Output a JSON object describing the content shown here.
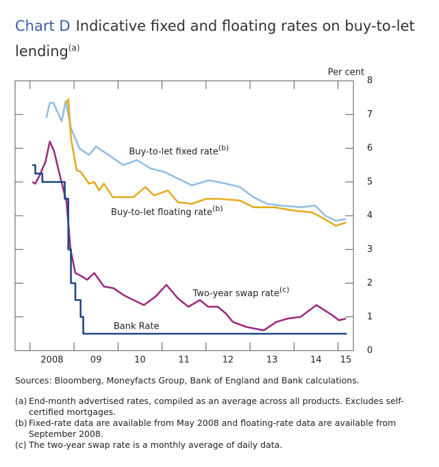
{
  "chart_data": {
    "type": "line",
    "label": "Chart D",
    "title": "Indicative fixed and floating rates on buy-to-let lending",
    "title_note": "(a)",
    "y_axis_label": "Per cent",
    "xlim": [
      2007.66,
      2015.35
    ],
    "xticks": [
      2008,
      2009,
      2010,
      2011,
      2012,
      2013,
      2014,
      2015
    ],
    "xtick_labels": [
      {
        "value": 2008.5,
        "label": "2008"
      },
      {
        "value": 2009.5,
        "label": "09"
      },
      {
        "value": 2010.5,
        "label": "10"
      },
      {
        "value": 2011.5,
        "label": "11"
      },
      {
        "value": 2012.5,
        "label": "12"
      },
      {
        "value": 2013.5,
        "label": "13"
      },
      {
        "value": 2014.5,
        "label": "14"
      },
      {
        "value": 2015.18,
        "label": "15"
      }
    ],
    "ylim": [
      0,
      8
    ],
    "yticks": [
      0,
      1,
      2,
      3,
      4,
      5,
      6,
      7,
      8
    ],
    "series": [
      {
        "name": "Buy-to-let fixed rate",
        "name_note": "(b)",
        "color": "#93bde6",
        "x": [
          2008.37,
          2008.45,
          2008.53,
          2008.72,
          2008.81,
          2008.93,
          2009.12,
          2009.34,
          2009.5,
          2009.73,
          2010.12,
          2010.43,
          2010.74,
          2011.05,
          2011.36,
          2011.68,
          2012.07,
          2012.45,
          2012.77,
          2013.08,
          2013.39,
          2013.7,
          2014.17,
          2014.48,
          2014.71,
          2014.95,
          2015.18
        ],
        "values": [
          6.9,
          7.35,
          7.35,
          6.8,
          7.4,
          6.6,
          6.0,
          5.8,
          6.05,
          5.85,
          5.5,
          5.65,
          5.4,
          5.3,
          5.1,
          4.9,
          5.05,
          4.95,
          4.85,
          4.55,
          4.35,
          4.3,
          4.25,
          4.3,
          4.0,
          3.85,
          3.9
        ]
      },
      {
        "name": "Buy-to-let floating rate",
        "name_note": "(b)",
        "color": "#e3ab1f",
        "x": [
          2008.81,
          2008.87,
          2008.93,
          2009.06,
          2009.15,
          2009.34,
          2009.46,
          2009.57,
          2009.68,
          2009.88,
          2010.35,
          2010.62,
          2010.82,
          2011.13,
          2011.36,
          2011.68,
          2012.0,
          2012.3,
          2012.77,
          2013.08,
          2013.55,
          2014.01,
          2014.4,
          2014.63,
          2014.95,
          2015.18
        ],
        "values": [
          7.3,
          7.45,
          6.3,
          5.35,
          5.3,
          4.95,
          5.0,
          4.75,
          4.95,
          4.55,
          4.55,
          4.85,
          4.6,
          4.75,
          4.4,
          4.35,
          4.5,
          4.5,
          4.45,
          4.25,
          4.25,
          4.15,
          4.1,
          3.95,
          3.7,
          3.8
        ]
      },
      {
        "name": "Two-year swap rate",
        "name_note": "(c)",
        "color": "#9c2a7c",
        "x": [
          2008.05,
          2008.12,
          2008.22,
          2008.35,
          2008.45,
          2008.55,
          2008.64,
          2008.83,
          2008.92,
          2009.03,
          2009.18,
          2009.3,
          2009.46,
          2009.68,
          2009.9,
          2010.12,
          2010.35,
          2010.59,
          2010.85,
          2011.1,
          2011.36,
          2011.6,
          2011.86,
          2012.05,
          2012.27,
          2012.45,
          2012.61,
          2012.92,
          2013.31,
          2013.6,
          2013.86,
          2014.15,
          2014.51,
          2014.87,
          2015.02,
          2015.18
        ],
        "values": [
          5.0,
          4.95,
          5.2,
          5.6,
          6.2,
          5.9,
          5.4,
          4.4,
          3.0,
          2.3,
          2.2,
          2.1,
          2.3,
          1.9,
          1.85,
          1.65,
          1.5,
          1.35,
          1.6,
          1.95,
          1.55,
          1.3,
          1.5,
          1.3,
          1.3,
          1.1,
          0.85,
          0.7,
          0.6,
          0.85,
          0.95,
          1.0,
          1.35,
          1.05,
          0.9,
          0.95
        ]
      },
      {
        "name": "Bank Rate",
        "color": "#1f4788",
        "step": true,
        "x": [
          2008.05,
          2008.12,
          2008.28,
          2008.79,
          2008.87,
          2008.93,
          2009.03,
          2009.15,
          2009.21,
          2015.2
        ],
        "values": [
          5.5,
          5.25,
          5.0,
          4.5,
          3.0,
          2.0,
          1.5,
          1.0,
          0.5,
          0.5
        ]
      }
    ],
    "label_positions_x": [
      2010.25,
      2009.84,
      2011.7,
      2009.9
    ],
    "label_positions_y": [
      5.9,
      4.1,
      1.7,
      0.72
    ],
    "sources": "Sources:  Bloomberg, Moneyfacts Group, Bank of England and Bank calculations.",
    "footnotes": [
      {
        "mark": "(a)",
        "text": "End-month advertised rates, compiled as an average across all products.  Excludes self-certified mortgages."
      },
      {
        "mark": "(b)",
        "text": "Fixed-rate data are available from May 2008 and floating-rate data are available from September 2008."
      },
      {
        "mark": "(c)",
        "text": "The two-year swap rate is a monthly average of daily data."
      }
    ]
  }
}
